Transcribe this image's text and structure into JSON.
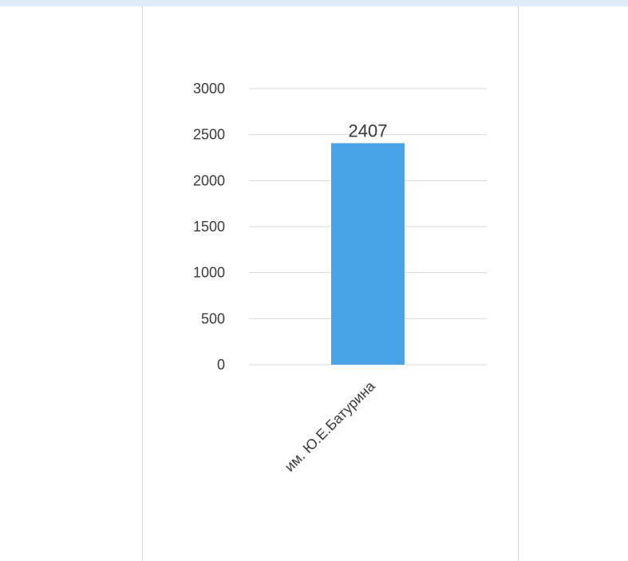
{
  "chart_data": {
    "type": "bar",
    "categories": [
      "им. Ю.Е.Батурина"
    ],
    "values": [
      2407
    ],
    "data_labels": [
      "2407"
    ],
    "yticks": [
      0,
      500,
      1000,
      1500,
      2000,
      2500,
      3000
    ],
    "ylim": [
      0,
      3000
    ],
    "grid": true,
    "bar_color": "#4aa3e6",
    "gridline_color": "#d9d9d9"
  }
}
